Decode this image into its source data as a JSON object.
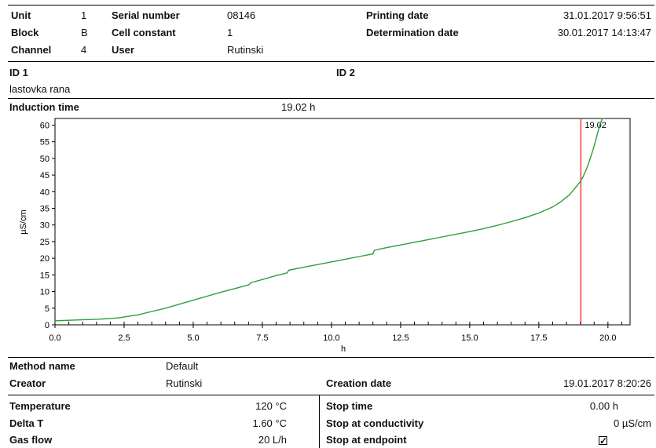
{
  "header": {
    "unit_label": "Unit",
    "unit_value": "1",
    "block_label": "Block",
    "block_value": "B",
    "channel_label": "Channel",
    "channel_value": "4",
    "serial_label": "Serial number",
    "serial_value": "08146",
    "cell_label": "Cell constant",
    "cell_value": "1",
    "user_label": "User",
    "user_value": "Rutinski",
    "printing_label": "Printing date",
    "printing_value": "31.01.2017 9:56:51",
    "determination_label": "Determination date",
    "determination_value": "30.01.2017 14:13:47"
  },
  "ids": {
    "id1_label": "ID 1",
    "id1_value": "lastovka rana",
    "id2_label": "ID 2"
  },
  "induction": {
    "label": "Induction time",
    "value": "19.02 h"
  },
  "chart_data": {
    "type": "line",
    "xlabel": "h",
    "ylabel": "µS/cm",
    "xlim": [
      0,
      20.8
    ],
    "ylim": [
      0,
      62
    ],
    "x_ticks": [
      "0.0",
      "2.5",
      "5.0",
      "7.5",
      "10.0",
      "12.5",
      "15.0",
      "17.5",
      "20.0"
    ],
    "y_ticks": [
      "0",
      "5",
      "10",
      "15",
      "20",
      "25",
      "30",
      "35",
      "40",
      "45",
      "50",
      "55",
      "60"
    ],
    "grid": false,
    "line_color": "#2e9e3a",
    "marker_color": "#ff3b3b",
    "marker": {
      "x": 19.02,
      "label": "19.02"
    },
    "series": [
      {
        "x": [
          0,
          0.3,
          0.6,
          1.0,
          1.3,
          1.6,
          2.0,
          2.3,
          2.6,
          3.0,
          3.5,
          4.0,
          4.5,
          5.0,
          5.5,
          6.0,
          6.5,
          7.0,
          7.1,
          7.5,
          8.0,
          8.4,
          8.45,
          9.0,
          9.5,
          10.0,
          10.5,
          11.0,
          11.5,
          11.55,
          12.0,
          12.5,
          13.0,
          13.5,
          14.0,
          14.5,
          15.0,
          15.5,
          16.0,
          16.5,
          17.0,
          17.5,
          18.0,
          18.3,
          18.6,
          18.8,
          19.0,
          19.1,
          19.2,
          19.3,
          19.4,
          19.5,
          19.6,
          19.7,
          19.8,
          19.9
        ],
        "y": [
          1.2,
          1.3,
          1.4,
          1.5,
          1.6,
          1.7,
          1.9,
          2.1,
          2.5,
          3.0,
          4.0,
          5.0,
          6.2,
          7.4,
          8.6,
          9.8,
          10.9,
          12.0,
          12.7,
          13.6,
          14.8,
          15.6,
          16.4,
          17.3,
          18.1,
          18.9,
          19.7,
          20.5,
          21.3,
          22.4,
          23.2,
          24.0,
          24.8,
          25.6,
          26.4,
          27.2,
          28.0,
          28.9,
          29.9,
          31.0,
          32.2,
          33.6,
          35.4,
          37.0,
          39.0,
          41.0,
          43.0,
          44.5,
          46.3,
          48.5,
          51.0,
          53.8,
          56.8,
          60.0,
          62.0,
          63.0
        ]
      }
    ]
  },
  "method": {
    "method_label": "Method name",
    "method_value": "Default",
    "creator_label": "Creator",
    "creator_value": "Rutinski",
    "creation_label": "Creation date",
    "creation_value": "19.01.2017 8:20:26"
  },
  "params": {
    "temperature_label": "Temperature",
    "temperature_value": "120 °C",
    "deltat_label": "Delta T",
    "deltat_value": "1.60 °C",
    "gasflow_label": "Gas flow",
    "gasflow_value": "20 L/h",
    "stoptime_label": "Stop time",
    "stoptime_value": "0.00 h",
    "stopcond_label": "Stop at conductivity",
    "stopcond_value": "0 µS/cm",
    "stopend_label": "Stop at endpoint",
    "stopend_mark": "✓"
  }
}
